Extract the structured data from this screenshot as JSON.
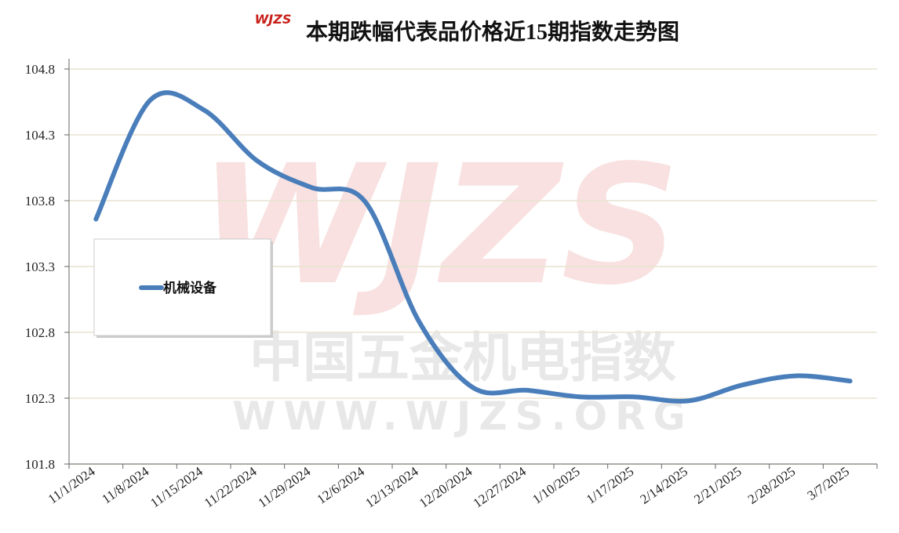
{
  "chart_data": {
    "type": "line",
    "title": "本期跌幅代表品价格近15期指数走势图",
    "logo": "WJZS",
    "watermark": "中国五金机电指数",
    "watermark_url": "WWW.WJZS.ORG",
    "categories": [
      "11/1/2024",
      "11/8/2024",
      "11/15/2024",
      "11/22/2024",
      "11/29/2024",
      "12/6/2024",
      "12/13/2024",
      "12/20/2024",
      "12/27/2024",
      "1/10/2025",
      "1/17/2025",
      "2/14/2025",
      "2/21/2025",
      "2/28/2025",
      "3/7/2025"
    ],
    "series": [
      {
        "name": "机械设备",
        "color": "#4a7ebb",
        "values": [
          103.66,
          104.56,
          104.49,
          104.1,
          103.9,
          103.79,
          102.88,
          102.38,
          102.36,
          102.31,
          102.31,
          102.28,
          102.4,
          102.47,
          102.43
        ]
      }
    ],
    "ylim": [
      101.8,
      104.8
    ],
    "yticks": [
      101.8,
      102.3,
      102.8,
      103.3,
      103.8,
      104.3,
      104.8
    ],
    "grid": true
  }
}
